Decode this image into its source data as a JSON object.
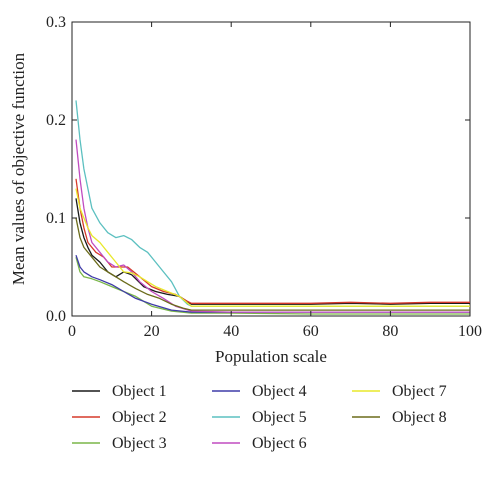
{
  "chart_data": {
    "type": "line",
    "title": "",
    "xlabel": "Population scale",
    "ylabel": "Mean values of objective function",
    "xlim": [
      0,
      100
    ],
    "ylim": [
      0,
      0.3
    ],
    "xticks": [
      0,
      20,
      40,
      60,
      80,
      100
    ],
    "xtick_labels": [
      "0",
      "20",
      "40",
      "60",
      "80",
      "100"
    ],
    "yticks": [
      0,
      0.1,
      0.2,
      0.3
    ],
    "ytick_labels": [
      "0.0",
      "0.1",
      "0.2",
      "0.3"
    ],
    "grid": false,
    "legend_position": "bottom",
    "series": [
      {
        "name": "Object 1",
        "color": "#1a1a1a",
        "points": [
          [
            1,
            0.12
          ],
          [
            2,
            0.095
          ],
          [
            3,
            0.08
          ],
          [
            4,
            0.07
          ],
          [
            5,
            0.062
          ],
          [
            7,
            0.055
          ],
          [
            9,
            0.045
          ],
          [
            11,
            0.04
          ],
          [
            13,
            0.045
          ],
          [
            15,
            0.042
          ],
          [
            18,
            0.03
          ],
          [
            21,
            0.025
          ],
          [
            24,
            0.022
          ],
          [
            27,
            0.02
          ],
          [
            30,
            0.012
          ],
          [
            40,
            0.012
          ],
          [
            50,
            0.012
          ],
          [
            60,
            0.012
          ],
          [
            70,
            0.013
          ],
          [
            80,
            0.012
          ],
          [
            90,
            0.013
          ],
          [
            100,
            0.013
          ]
        ]
      },
      {
        "name": "Object 2",
        "color": "#d63a2a",
        "points": [
          [
            1,
            0.14
          ],
          [
            2,
            0.11
          ],
          [
            3,
            0.09
          ],
          [
            4,
            0.075
          ],
          [
            6,
            0.065
          ],
          [
            8,
            0.06
          ],
          [
            10,
            0.05
          ],
          [
            12,
            0.05
          ],
          [
            14,
            0.05
          ],
          [
            17,
            0.04
          ],
          [
            20,
            0.03
          ],
          [
            23,
            0.025
          ],
          [
            26,
            0.022
          ],
          [
            29,
            0.015
          ],
          [
            30,
            0.013
          ],
          [
            40,
            0.013
          ],
          [
            50,
            0.013
          ],
          [
            60,
            0.013
          ],
          [
            70,
            0.014
          ],
          [
            80,
            0.013
          ],
          [
            90,
            0.014
          ],
          [
            100,
            0.014
          ]
        ]
      },
      {
        "name": "Object 3",
        "color": "#7ab648",
        "points": [
          [
            1,
            0.06
          ],
          [
            2,
            0.045
          ],
          [
            3,
            0.04
          ],
          [
            5,
            0.038
          ],
          [
            7,
            0.035
          ],
          [
            10,
            0.03
          ],
          [
            13,
            0.025
          ],
          [
            16,
            0.02
          ],
          [
            20,
            0.01
          ],
          [
            25,
            0.005
          ],
          [
            30,
            0.003
          ],
          [
            40,
            0.003
          ],
          [
            60,
            0.002
          ],
          [
            80,
            0.002
          ],
          [
            100,
            0.002
          ]
        ]
      },
      {
        "name": "Object 4",
        "color": "#3f3ba8",
        "points": [
          [
            1,
            0.062
          ],
          [
            2,
            0.05
          ],
          [
            3,
            0.045
          ],
          [
            5,
            0.04
          ],
          [
            7,
            0.037
          ],
          [
            10,
            0.032
          ],
          [
            13,
            0.025
          ],
          [
            16,
            0.018
          ],
          [
            20,
            0.012
          ],
          [
            25,
            0.006
          ],
          [
            30,
            0.004
          ],
          [
            40,
            0.004
          ],
          [
            60,
            0.004
          ],
          [
            80,
            0.004
          ],
          [
            100,
            0.004
          ]
        ]
      },
      {
        "name": "Object 5",
        "color": "#5cc0c0",
        "points": [
          [
            1,
            0.22
          ],
          [
            2,
            0.18
          ],
          [
            3,
            0.15
          ],
          [
            4,
            0.13
          ],
          [
            5,
            0.11
          ],
          [
            7,
            0.095
          ],
          [
            9,
            0.085
          ],
          [
            11,
            0.08
          ],
          [
            13,
            0.082
          ],
          [
            15,
            0.078
          ],
          [
            17,
            0.07
          ],
          [
            19,
            0.065
          ],
          [
            21,
            0.055
          ],
          [
            23,
            0.045
          ],
          [
            25,
            0.035
          ],
          [
            27,
            0.02
          ],
          [
            29,
            0.012
          ],
          [
            30,
            0.01
          ],
          [
            40,
            0.01
          ],
          [
            50,
            0.01
          ],
          [
            60,
            0.01
          ],
          [
            70,
            0.01
          ],
          [
            80,
            0.01
          ],
          [
            90,
            0.01
          ],
          [
            100,
            0.01
          ]
        ]
      },
      {
        "name": "Object 6",
        "color": "#c04bc0",
        "points": [
          [
            1,
            0.18
          ],
          [
            2,
            0.14
          ],
          [
            3,
            0.11
          ],
          [
            4,
            0.09
          ],
          [
            5,
            0.075
          ],
          [
            7,
            0.065
          ],
          [
            9,
            0.055
          ],
          [
            11,
            0.05
          ],
          [
            13,
            0.052
          ],
          [
            15,
            0.045
          ],
          [
            17,
            0.035
          ],
          [
            20,
            0.025
          ],
          [
            23,
            0.018
          ],
          [
            26,
            0.01
          ],
          [
            30,
            0.005
          ],
          [
            40,
            0.004
          ],
          [
            60,
            0.004
          ],
          [
            80,
            0.004
          ],
          [
            100,
            0.004
          ]
        ]
      },
      {
        "name": "Object 7",
        "color": "#e8e82a",
        "points": [
          [
            1,
            0.13
          ],
          [
            2,
            0.11
          ],
          [
            3,
            0.1
          ],
          [
            4,
            0.09
          ],
          [
            5,
            0.082
          ],
          [
            7,
            0.075
          ],
          [
            9,
            0.065
          ],
          [
            11,
            0.055
          ],
          [
            13,
            0.045
          ],
          [
            15,
            0.044
          ],
          [
            17,
            0.04
          ],
          [
            19,
            0.035
          ],
          [
            21,
            0.03
          ],
          [
            24,
            0.025
          ],
          [
            27,
            0.02
          ],
          [
            30,
            0.01
          ],
          [
            40,
            0.01
          ],
          [
            60,
            0.01
          ],
          [
            80,
            0.01
          ],
          [
            100,
            0.01
          ]
        ]
      },
      {
        "name": "Object 8",
        "color": "#6b6b1a",
        "points": [
          [
            1,
            0.1
          ],
          [
            2,
            0.08
          ],
          [
            3,
            0.07
          ],
          [
            5,
            0.06
          ],
          [
            7,
            0.05
          ],
          [
            9,
            0.045
          ],
          [
            11,
            0.04
          ],
          [
            13,
            0.035
          ],
          [
            16,
            0.028
          ],
          [
            19,
            0.022
          ],
          [
            22,
            0.018
          ],
          [
            25,
            0.012
          ],
          [
            28,
            0.008
          ],
          [
            30,
            0.006
          ],
          [
            40,
            0.006
          ],
          [
            60,
            0.006
          ],
          [
            80,
            0.006
          ],
          [
            100,
            0.006
          ]
        ]
      }
    ]
  }
}
